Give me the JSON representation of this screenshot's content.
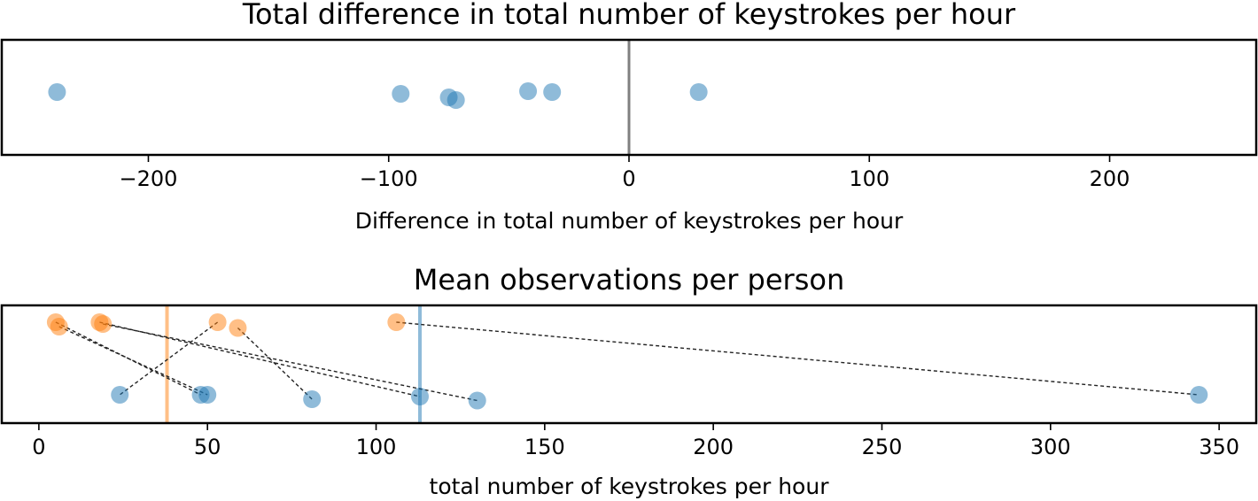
{
  "chart_data": [
    {
      "type": "scatter",
      "title": "Total difference in total number of keystrokes per hour",
      "xlabel": "Difference in total number of keystrokes per hour",
      "ylabel": "",
      "xlim": [
        -261,
        261
      ],
      "xticks": [
        -200,
        -100,
        0,
        100,
        200
      ],
      "xtick_labels": [
        "−200",
        "−100",
        "0",
        "100",
        "200"
      ],
      "grid": false,
      "legend": "none",
      "reference_line": {
        "x": 0,
        "color": "#808080"
      },
      "point_color": "#1f77b4",
      "series": [
        {
          "points": [
            {
              "x": -238,
              "y": 0.0
            },
            {
              "x": -95,
              "y": -0.02
            },
            {
              "x": -75,
              "y": -0.06
            },
            {
              "x": -72,
              "y": -0.09
            },
            {
              "x": -42,
              "y": 0.01
            },
            {
              "x": -32,
              "y": 0.0
            },
            {
              "x": 29,
              "y": 0.0
            }
          ]
        }
      ]
    },
    {
      "type": "scatter",
      "title": "Mean observations per person",
      "xlabel": "total number of keystrokes per hour",
      "ylabel": "",
      "xlim": [
        -11,
        361
      ],
      "xticks": [
        0,
        50,
        100,
        150,
        200,
        250,
        300,
        350
      ],
      "xtick_labels": [
        "0",
        "50",
        "100",
        "150",
        "200",
        "250",
        "300",
        "350"
      ],
      "grid": false,
      "legend": "none",
      "colors": {
        "orange": "#ff7f0e",
        "blue": "#1f77b4",
        "connector": "#222222"
      },
      "orange_row_y": 1,
      "blue_row_y": 0,
      "means": {
        "orange": 38,
        "blue": 113
      },
      "pairs": [
        {
          "orange": 5,
          "blue": 48
        },
        {
          "orange": 6,
          "blue": 50
        },
        {
          "orange": 18,
          "blue": 113
        },
        {
          "orange": 19,
          "blue": 130
        },
        {
          "orange": 53,
          "blue": 24
        },
        {
          "orange": 59,
          "blue": 81
        },
        {
          "orange": 106,
          "blue": 344
        }
      ],
      "orange_jitter": [
        0.04,
        -0.06,
        0.04,
        0.0,
        0.04,
        -0.09,
        0.04
      ],
      "blue_jitter": [
        0.04,
        0.04,
        0.0,
        -0.09,
        0.04,
        -0.06,
        0.04
      ]
    }
  ]
}
